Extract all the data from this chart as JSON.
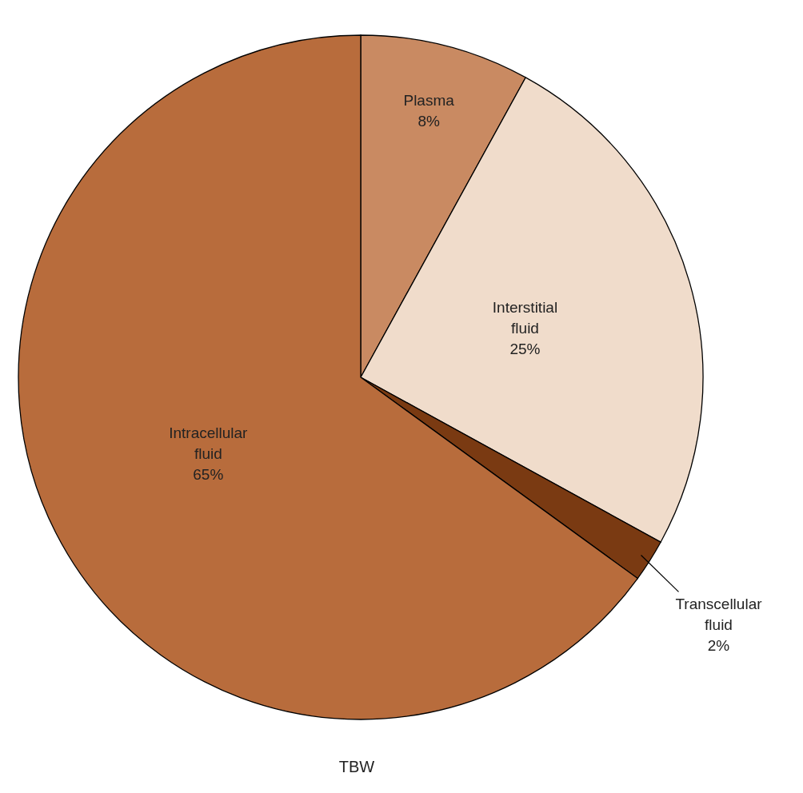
{
  "chart_data": {
    "type": "pie",
    "title": "TBW",
    "categories": [
      "Plasma",
      "Interstitial fluid",
      "Transcellular fluid",
      "Intracellular fluid"
    ],
    "values": [
      8,
      25,
      2,
      65
    ],
    "value_labels": [
      "8%",
      "25%",
      "2%",
      "65%"
    ],
    "colors": [
      "#c98a62",
      "#f0dccb",
      "#7a3a12",
      "#b86c3c"
    ]
  }
}
